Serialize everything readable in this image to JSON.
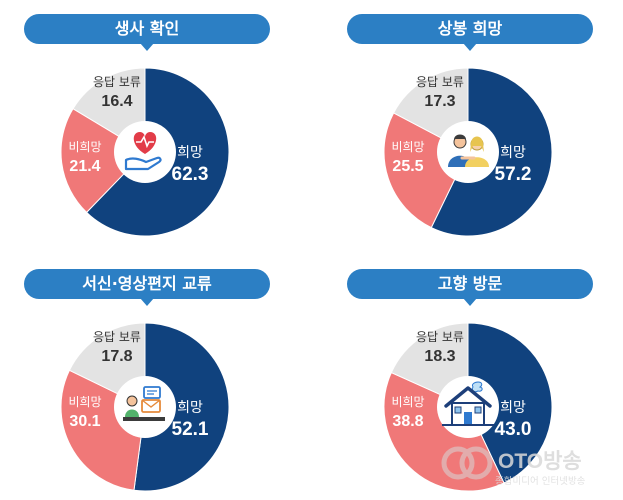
{
  "colors": {
    "hope": "#10427e",
    "no_hope": "#f07878",
    "pending": "#e3e3e3",
    "pill": "#2c7fc4",
    "icon_red": "#e23c48",
    "icon_blue": "#2f7ad0"
  },
  "charts": [
    {
      "title": "생사 확인",
      "icon": "heart-hand-icon",
      "chart_data": {
        "type": "pie",
        "slices": [
          {
            "label": "희망",
            "value": 62.3
          },
          {
            "label": "비희망",
            "value": 21.4
          },
          {
            "label": "응답 보류",
            "value": 16.4
          }
        ]
      }
    },
    {
      "title": "상봉 희망",
      "icon": "family-reunion-icon",
      "chart_data": {
        "type": "pie",
        "slices": [
          {
            "label": "희망",
            "value": 57.2
          },
          {
            "label": "비희망",
            "value": 25.5
          },
          {
            "label": "응답 보류",
            "value": 17.3
          }
        ]
      }
    },
    {
      "title": "서신·영상편지 교류",
      "icon": "video-letter-icon",
      "chart_data": {
        "type": "pie",
        "slices": [
          {
            "label": "희망",
            "value": 52.1
          },
          {
            "label": "비희망",
            "value": 30.1
          },
          {
            "label": "응답 보류",
            "value": 17.8
          }
        ]
      }
    },
    {
      "title": "고향 방문",
      "icon": "house-icon",
      "chart_data": {
        "type": "pie",
        "slices": [
          {
            "label": "희망",
            "value": 43.0
          },
          {
            "label": "비희망",
            "value": 38.8
          },
          {
            "label": "응답 보류",
            "value": 18.3
          }
        ]
      }
    }
  ],
  "watermark": {
    "name": "OTO방송",
    "subtitle": "종합미디어 인터넷방송"
  }
}
